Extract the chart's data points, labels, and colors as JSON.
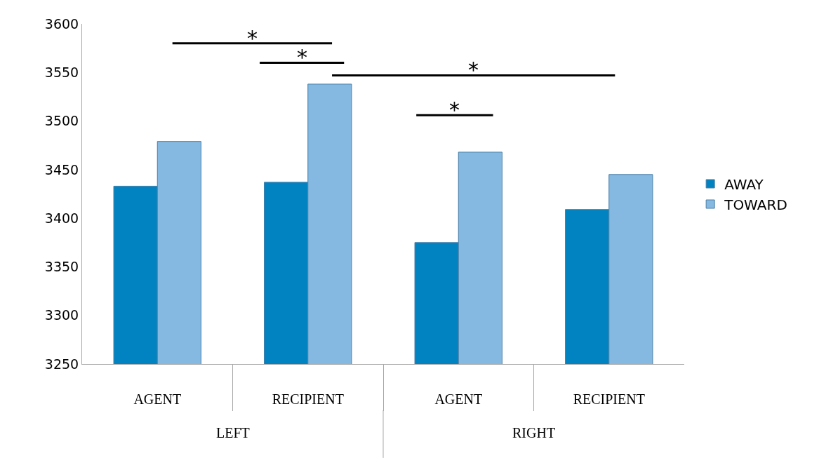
{
  "chart_data": {
    "type": "bar",
    "categories": [
      "AGENT",
      "RECIPIENT",
      "AGENT",
      "RECIPIENT"
    ],
    "series": [
      {
        "name": "AWAY",
        "color": "#0083c0",
        "values": [
          3433,
          3437,
          3375,
          3409
        ]
      },
      {
        "name": "TOWARD",
        "color": "#85b9e1",
        "values": [
          3479,
          3538,
          3468,
          3445
        ]
      }
    ],
    "ylim": [
      3250,
      3600
    ],
    "yticks": [
      3250,
      3300,
      3350,
      3400,
      3450,
      3500,
      3550,
      3600
    ],
    "legend": "right",
    "annotations": [
      "*",
      "*",
      "*",
      "*",
      "LEFT",
      "RIGHT"
    ]
  }
}
